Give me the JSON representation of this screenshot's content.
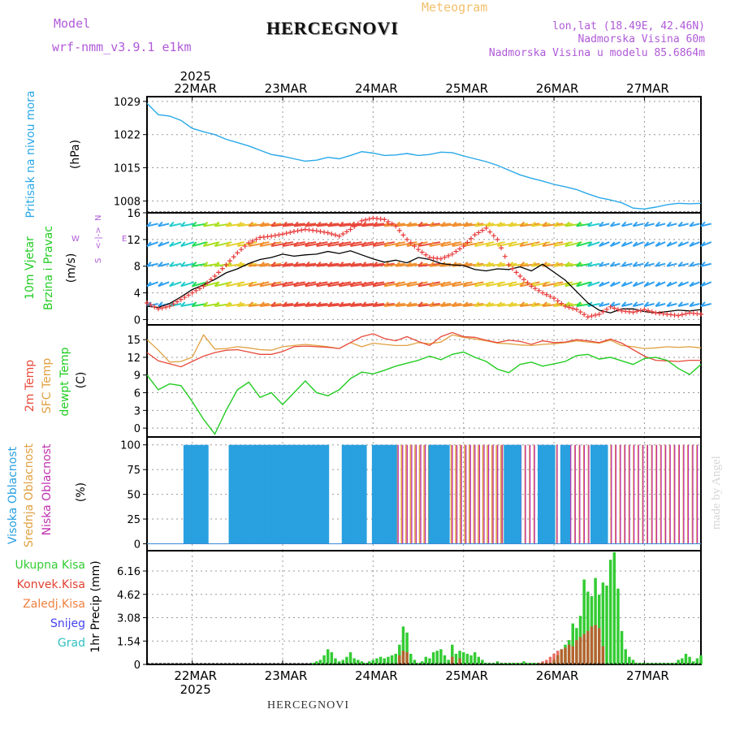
{
  "header": {
    "model_label": "Model",
    "model_name": "wrf-nmm_v3.9.1 e1km",
    "title": "HERCEGNOVI",
    "meteogram": "Meteogram",
    "lonlat": "lon,lat (18.49E, 42.46N)",
    "elevation": "Nadmorska Visina 60m",
    "model_elevation": "Nadmorska Visina u modelu 85.6864m"
  },
  "footer": {
    "station": "HERCEGNOVI",
    "credit": "made by Angel"
  },
  "colors": {
    "pressure": "#29a8e8",
    "wind_speed": "#000000",
    "wind_dir": "#e83a3a",
    "t2m": "#e84a3a",
    "tsfc": "#e0a040",
    "dewpoint": "#22cc22",
    "high_cloud": "#29a0e0",
    "mid_cloud": "#e0a040",
    "low_cloud": "#c030b0",
    "total_precip": "#33cc33",
    "conv_precip": "#e04030",
    "frozen_precip": "#f08040",
    "snow": "#4444ee",
    "graupel": "#30c0c0",
    "grid": "#999999"
  },
  "chart_data": [
    {
      "type": "line",
      "panel": "pressure",
      "ylabel_outer": "Pritisak na nivou mora",
      "ylabel_unit": "(hPa)",
      "yticks": [
        1008,
        1015,
        1022,
        1029
      ],
      "ylim": [
        1005.5,
        1030
      ],
      "grid": true,
      "top_axis": {
        "year": "2025",
        "dates": [
          "22MAR",
          "23MAR",
          "24MAR",
          "25MAR",
          "26MAR",
          "27MAR"
        ]
      },
      "series": [
        {
          "x_hours": [
            0,
            3,
            6,
            9,
            12,
            15,
            18,
            21,
            24,
            27,
            30,
            33,
            36,
            39,
            42,
            45,
            48,
            51,
            54,
            57,
            60,
            63,
            66,
            69,
            72,
            75,
            78,
            81,
            84,
            87,
            90,
            93,
            96,
            99,
            102,
            105,
            108,
            111,
            114,
            117,
            120,
            123,
            126,
            129,
            132,
            135,
            138,
            141,
            144,
            147
          ],
          "values": [
            1028.6,
            1026.2,
            1025.9,
            1025.0,
            1023.3,
            1022.6,
            1022.0,
            1021.0,
            1020.3,
            1019.6,
            1018.7,
            1017.8,
            1017.4,
            1016.9,
            1016.4,
            1016.6,
            1017.2,
            1016.9,
            1017.6,
            1018.4,
            1018.1,
            1017.6,
            1017.7,
            1018.0,
            1017.6,
            1017.8,
            1018.3,
            1018.2,
            1017.5,
            1016.9,
            1016.3,
            1015.5,
            1014.5,
            1013.5,
            1012.8,
            1012.2,
            1011.5,
            1011.0,
            1010.4,
            1009.5,
            1008.7,
            1008.2,
            1007.6,
            1006.5,
            1006.3,
            1006.7,
            1007.2,
            1007.5,
            1007.4,
            1007.5
          ]
        }
      ]
    },
    {
      "type": "line",
      "panel": "wind",
      "ylabel_outer": "10m Vjetar Brzina i Pravac",
      "ylabel_unit": "(m/s)",
      "compass": {
        "n": "N",
        "e": "E",
        "w": "W",
        "s": "S"
      },
      "yticks": [
        0,
        4,
        8,
        12,
        16
      ],
      "ylim": [
        -0.8,
        16
      ],
      "grid": true,
      "series": [
        {
          "name": "wind speed",
          "x_hours": [
            0,
            3,
            6,
            9,
            12,
            15,
            18,
            21,
            24,
            27,
            30,
            33,
            36,
            39,
            42,
            45,
            48,
            51,
            54,
            57,
            60,
            63,
            66,
            69,
            72,
            75,
            78,
            81,
            84,
            87,
            90,
            93,
            96,
            99,
            102,
            105,
            108,
            111,
            114,
            117,
            120,
            123,
            126,
            129,
            132,
            135,
            138,
            141,
            144,
            147
          ],
          "values": [
            2.0,
            1.8,
            2.4,
            3.4,
            4.5,
            5.2,
            6.0,
            7.0,
            7.6,
            8.4,
            9.0,
            9.3,
            9.8,
            9.5,
            9.7,
            9.8,
            10.2,
            9.9,
            10.3,
            9.7,
            9.1,
            8.6,
            8.9,
            8.5,
            9.3,
            9.0,
            8.4,
            8.2,
            8.1,
            7.5,
            7.3,
            7.6,
            7.5,
            7.9,
            7.3,
            8.3,
            7.1,
            5.9,
            4.2,
            2.5,
            1.4,
            1.0,
            1.6,
            1.6,
            1.2,
            1.0,
            1.2,
            1.4,
            1.3,
            1.5
          ]
        },
        {
          "name": "wind direction",
          "x_hours": [
            0,
            3,
            6,
            9,
            12,
            15,
            18,
            21,
            24,
            27,
            30,
            33,
            36,
            39,
            42,
            45,
            48,
            51,
            54,
            57,
            60,
            63,
            66,
            69,
            72,
            75,
            78,
            81,
            84,
            87,
            90,
            93,
            96,
            99,
            102,
            105,
            108,
            111,
            114,
            117,
            120,
            123,
            126,
            129,
            132,
            135,
            138,
            141,
            144,
            147
          ],
          "values": [
            2.5,
            1.6,
            2.0,
            3.0,
            4.0,
            5.0,
            6.5,
            8.2,
            10.0,
            11.5,
            12.3,
            12.5,
            12.8,
            13.2,
            13.5,
            13.3,
            13.0,
            12.5,
            13.5,
            14.8,
            15.2,
            15.0,
            14.0,
            12.0,
            10.5,
            9.3,
            9.1,
            9.8,
            11.0,
            12.7,
            13.7,
            12.0,
            8.2,
            6.5,
            5.0,
            4.0,
            3.2,
            2.0,
            1.5,
            0.4,
            0.8,
            1.9,
            1.3,
            1.1,
            1.5,
            1.0,
            0.8,
            0.6,
            1.0,
            0.8
          ]
        }
      ]
    },
    {
      "type": "line",
      "panel": "temperature",
      "ylabel_outer": [
        "2m Temp",
        "SFC Temp",
        "dewpt Temp"
      ],
      "ylabel_unit": "(C)",
      "yticks": [
        0,
        3,
        6,
        9,
        12,
        15
      ],
      "ylim": [
        -1.5,
        17.5
      ],
      "grid": true,
      "series": [
        {
          "name": "2m Temp",
          "x_hours": [
            0,
            3,
            6,
            9,
            12,
            15,
            18,
            21,
            24,
            27,
            30,
            33,
            36,
            39,
            42,
            45,
            48,
            51,
            54,
            57,
            60,
            63,
            66,
            69,
            72,
            75,
            78,
            81,
            84,
            87,
            90,
            93,
            96,
            99,
            102,
            105,
            108,
            111,
            114,
            117,
            120,
            123,
            126,
            129,
            132,
            135,
            138,
            141,
            144,
            147
          ],
          "values": [
            12.8,
            11.4,
            10.9,
            10.4,
            11.3,
            12.2,
            12.8,
            13.2,
            13.3,
            12.9,
            12.5,
            12.5,
            13.0,
            13.8,
            13.9,
            13.8,
            13.7,
            13.5,
            14.5,
            15.5,
            16.0,
            15.2,
            14.8,
            15.5,
            14.7,
            14.0,
            15.5,
            16.2,
            15.5,
            15.4,
            14.9,
            14.5,
            14.9,
            14.7,
            14.2,
            14.8,
            14.5,
            14.6,
            15.0,
            14.8,
            14.5,
            15.1,
            14.4,
            13.3,
            12.2,
            11.5,
            11.4,
            11.3,
            11.5,
            11.5
          ]
        },
        {
          "name": "SFC Temp",
          "x_hours": [
            0,
            3,
            6,
            9,
            12,
            15,
            18,
            21,
            24,
            27,
            30,
            33,
            36,
            39,
            42,
            45,
            48,
            51,
            54,
            57,
            60,
            63,
            66,
            69,
            72,
            75,
            78,
            81,
            84,
            87,
            90,
            93,
            96,
            99,
            102,
            105,
            108,
            111,
            114,
            117,
            120,
            123,
            126,
            129,
            132,
            135,
            138,
            141,
            144,
            147
          ],
          "values": [
            15.0,
            13.2,
            11.2,
            11.3,
            12.0,
            15.8,
            13.4,
            13.5,
            13.8,
            13.6,
            13.3,
            13.2,
            13.8,
            14.0,
            14.2,
            14.0,
            13.8,
            13.5,
            14.5,
            13.8,
            14.4,
            14.2,
            14.0,
            14.0,
            14.5,
            14.3,
            14.6,
            15.8,
            15.4,
            15.1,
            14.8,
            14.4,
            14.3,
            14.1,
            14.0,
            14.2,
            14.3,
            14.5,
            14.8,
            14.6,
            14.4,
            14.9,
            14.0,
            13.8,
            13.5,
            13.6,
            13.8,
            13.7,
            13.8,
            13.6
          ]
        },
        {
          "name": "dewpt Temp",
          "x_hours": [
            0,
            3,
            6,
            9,
            12,
            15,
            18,
            21,
            24,
            27,
            30,
            33,
            36,
            39,
            42,
            45,
            48,
            51,
            54,
            57,
            60,
            63,
            66,
            69,
            72,
            75,
            78,
            81,
            84,
            87,
            90,
            93,
            96,
            99,
            102,
            105,
            108,
            111,
            114,
            117,
            120,
            123,
            126,
            129,
            132,
            135,
            138,
            141,
            144,
            147
          ],
          "values": [
            9.0,
            6.5,
            7.5,
            7.2,
            4.5,
            1.5,
            -1.0,
            3.0,
            6.5,
            7.8,
            5.2,
            6.0,
            4.0,
            6.0,
            8.0,
            6.0,
            5.5,
            6.5,
            8.4,
            9.5,
            9.2,
            9.8,
            10.5,
            11.0,
            11.5,
            12.2,
            11.6,
            12.5,
            12.9,
            12.0,
            11.3,
            10.0,
            9.4,
            10.8,
            11.2,
            10.5,
            10.9,
            11.3,
            12.3,
            12.5,
            11.7,
            12.0,
            11.4,
            10.8,
            11.8,
            12.0,
            11.5,
            10.1,
            9.1,
            10.8
          ]
        }
      ]
    },
    {
      "type": "bar",
      "panel": "clouds",
      "ylabel_outer": [
        "Visoka Oblacnost",
        "Srednja Oblacnost",
        "Niska Oblacnost"
      ],
      "ylabel_unit": "(%)",
      "yticks": [
        0,
        25,
        50,
        75,
        100
      ],
      "ylim": [
        -7,
        108
      ],
      "grid": true,
      "series": [
        {
          "name": "Visoka Oblacnost",
          "periods_hours": [
            [
              10,
              16
            ],
            [
              22,
              48
            ],
            [
              52,
              58
            ],
            [
              60,
              66
            ],
            [
              75,
              80
            ],
            [
              95,
              99
            ],
            [
              104,
              108
            ],
            [
              110,
              112
            ],
            [
              118,
              122
            ]
          ],
          "value": 100
        },
        {
          "name": "Srednja Oblacnost",
          "periods_hours": [
            [
              22,
              48
            ],
            [
              60,
              94
            ],
            [
              94,
              147
            ]
          ],
          "value": 100
        },
        {
          "name": "Niska Oblacnost",
          "periods_hours": [
            [
              22,
              46
            ],
            [
              60,
              95
            ],
            [
              95,
              147
            ]
          ],
          "value": 100
        }
      ]
    },
    {
      "type": "bar",
      "panel": "precipitation",
      "legend": [
        "Ukupna Kisa",
        "Konvek.Kisa",
        "Zaledj.Kisa",
        "Snijeg",
        "Grad"
      ],
      "ylabel_unit": "1hr Precip (mm)",
      "yticks": [
        0,
        1.54,
        3.08,
        4.62,
        6.16
      ],
      "ylim": [
        0,
        7.5
      ],
      "grid": true,
      "bottom_axis": {
        "dates": [
          "22MAR",
          "23MAR",
          "24MAR",
          "25MAR",
          "26MAR",
          "27MAR"
        ],
        "year": "2025"
      },
      "series": [
        {
          "name": "Ukupna Kisa",
          "x_hours": [
            44,
            45,
            46,
            47,
            48,
            49,
            50,
            51,
            52,
            53,
            54,
            55,
            56,
            57,
            58,
            59,
            60,
            61,
            62,
            63,
            64,
            65,
            66,
            67,
            68,
            69,
            70,
            71,
            72,
            73,
            74,
            75,
            76,
            77,
            78,
            79,
            80,
            81,
            82,
            83,
            84,
            85,
            86,
            87,
            88,
            89,
            90,
            91,
            92,
            93,
            94,
            95,
            96,
            97,
            98,
            99,
            100,
            101,
            102,
            103,
            104,
            105,
            106,
            107,
            108,
            109,
            110,
            111,
            112,
            113,
            114,
            115,
            116,
            117,
            118,
            119,
            120,
            121,
            122,
            123,
            124,
            125,
            126,
            127,
            128,
            129,
            130,
            131,
            132,
            133,
            134,
            135,
            136,
            137,
            138,
            139,
            140,
            141,
            142,
            143,
            144,
            145,
            146,
            147
          ],
          "values": [
            0.1,
            0.2,
            0.3,
            0.6,
            1.0,
            0.8,
            0.4,
            0.2,
            0.3,
            0.5,
            0.8,
            0.4,
            0.3,
            0.2,
            0.1,
            0.2,
            0.3,
            0.4,
            0.5,
            0.4,
            0.5,
            0.6,
            0.7,
            1.3,
            2.5,
            2.1,
            0.7,
            0.3,
            0.1,
            0.2,
            0.5,
            0.4,
            0.8,
            0.9,
            1.0,
            0.6,
            0.3,
            1.3,
            0.7,
            0.9,
            0.8,
            0.7,
            0.6,
            0.8,
            0.5,
            0.3,
            0.1,
            0.1,
            0.1,
            0.2,
            0.1,
            0.1,
            0.1,
            0.1,
            0.1,
            0.1,
            0.2,
            0.1,
            0.1,
            0.1,
            0.1,
            0.1,
            0.1,
            0.1,
            0.3,
            0.6,
            1.0,
            1.3,
            1.6,
            2.7,
            2.4,
            3.2,
            5.6,
            4.8,
            4.5,
            5.7,
            4.6,
            5.4,
            5.2,
            6.9,
            7.4,
            5.0,
            2.2,
            1.0,
            0.5,
            0.3,
            0.1,
            0.1,
            0.1,
            0.1,
            0.1,
            0.1,
            0.1,
            0.1,
            0.1,
            0.1,
            0.1,
            0.3,
            0.4,
            0.7,
            0.5,
            0.2,
            0.4,
            0.6
          ]
        },
        {
          "name": "Konvek.Kisa",
          "x_hours": [
            67,
            68,
            69,
            81,
            83,
            104,
            105,
            106,
            107,
            108,
            109,
            110,
            111,
            112,
            113,
            114,
            115,
            116,
            117,
            118,
            119,
            120,
            121
          ],
          "values": [
            0.6,
            0.9,
            0.8,
            0.5,
            0.4,
            0.1,
            0.2,
            0.3,
            0.5,
            0.7,
            0.9,
            1.0,
            1.1,
            1.3,
            1.2,
            1.6,
            1.8,
            2.0,
            2.2,
            2.5,
            2.6,
            2.4,
            1.2
          ]
        }
      ]
    }
  ]
}
